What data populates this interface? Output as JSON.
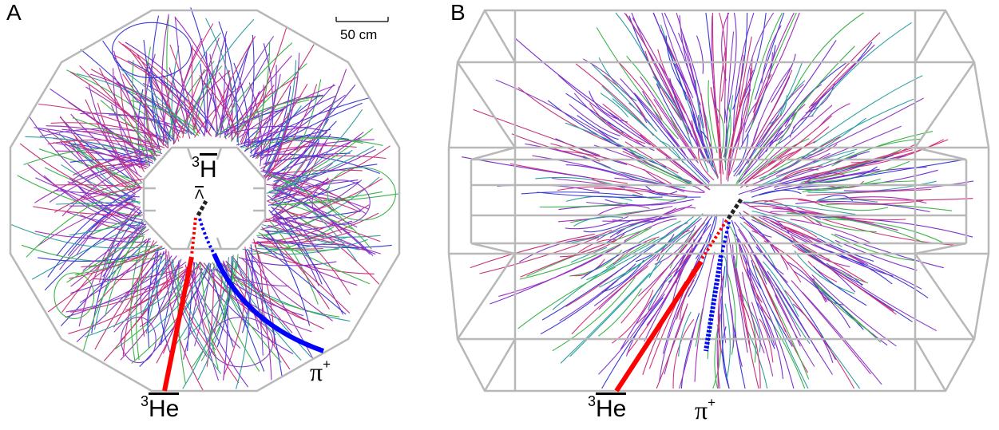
{
  "panels": [
    {
      "letter": "A",
      "view": "end-view"
    },
    {
      "letter": "B",
      "view": "side-view"
    }
  ],
  "scale_bar": {
    "label": "50 cm"
  },
  "labels": {
    "hypertriton": {
      "mass_number": "3",
      "symbol": "H",
      "subscript": "Λ"
    },
    "helium_a": {
      "mass_number": "3",
      "symbol": "He"
    },
    "pion_a": {
      "symbol": "π",
      "charge": "+"
    },
    "helium_b": {
      "mass_number": "3",
      "symbol": "He"
    },
    "pion_b": {
      "symbol": "π",
      "charge": "+"
    }
  },
  "colors": {
    "detector_outline": "#b8b8b8",
    "he3_track": "#ff0000",
    "pion_track": "#0000ff",
    "decay_track": "#222222",
    "track_palette": [
      "#3a3ad8",
      "#7a2fd0",
      "#a52fb8",
      "#c5307a",
      "#d6317a",
      "#2fa0a0",
      "#3cb44b",
      "#8a3cc8"
    ]
  }
}
